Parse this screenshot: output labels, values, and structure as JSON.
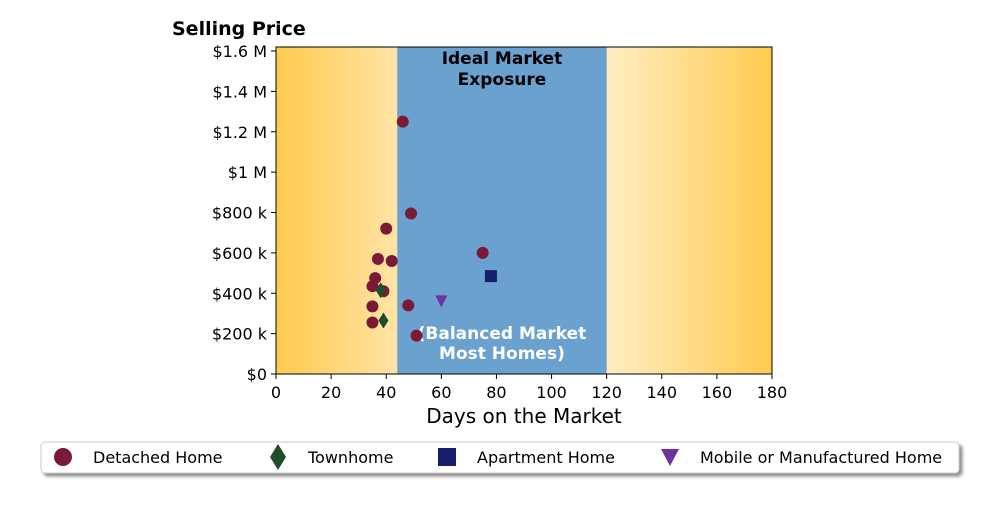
{
  "chart_data": {
    "type": "scatter",
    "ylabel": "Selling Price",
    "xlabel": "Days on the Market",
    "xlim": [
      0,
      180
    ],
    "ylim": [
      0,
      1620000
    ],
    "x_ticks": [
      0,
      20,
      40,
      60,
      80,
      100,
      120,
      140,
      160,
      180
    ],
    "x_tick_labels": [
      "0",
      "20",
      "40",
      "60",
      "80",
      "100",
      "120",
      "140",
      "160",
      "180"
    ],
    "y_ticks": [
      0,
      200000,
      400000,
      600000,
      800000,
      1000000,
      1200000,
      1400000,
      1600000
    ],
    "y_tick_labels": [
      "$0",
      "$200 k",
      "$400 k",
      "$600 k",
      "$800 k",
      "$1 M",
      "$1.2 M",
      "$1.4 M",
      "$1.6 M"
    ],
    "grid": false,
    "legend_placement": "bottom-center",
    "shaded_region": {
      "x_range": [
        44,
        120
      ],
      "color": "#6aa1ce",
      "title_lines": [
        "Ideal Market",
        "Exposure"
      ],
      "note_lines": [
        "(Balanced Market",
        "Most Homes)"
      ]
    },
    "background_gradient": {
      "edge_color": "#ffca50",
      "center_color": "#ffffff"
    },
    "series": [
      {
        "name": "Detached Home",
        "marker": "circle",
        "color": "#7a1a36",
        "points": [
          {
            "x": 46,
            "y": 1250000
          },
          {
            "x": 49,
            "y": 795000
          },
          {
            "x": 40,
            "y": 720000
          },
          {
            "x": 75,
            "y": 600000
          },
          {
            "x": 37,
            "y": 570000
          },
          {
            "x": 42,
            "y": 560000
          },
          {
            "x": 36,
            "y": 475000
          },
          {
            "x": 35,
            "y": 435000
          },
          {
            "x": 39,
            "y": 410000
          },
          {
            "x": 35,
            "y": 335000
          },
          {
            "x": 48,
            "y": 340000
          },
          {
            "x": 35,
            "y": 255000
          },
          {
            "x": 51,
            "y": 190000
          }
        ]
      },
      {
        "name": "Townhome",
        "marker": "diamond",
        "color": "#1e4d2b",
        "points": [
          {
            "x": 38,
            "y": 415000
          },
          {
            "x": 39,
            "y": 265000
          }
        ]
      },
      {
        "name": "Apartment Home",
        "marker": "square",
        "color": "#14206e",
        "points": [
          {
            "x": 78,
            "y": 485000
          }
        ]
      },
      {
        "name": "Mobile or Manufactured Home",
        "marker": "triangle-down",
        "color": "#7030a0",
        "points": [
          {
            "x": 60,
            "y": 360000
          }
        ]
      }
    ]
  }
}
